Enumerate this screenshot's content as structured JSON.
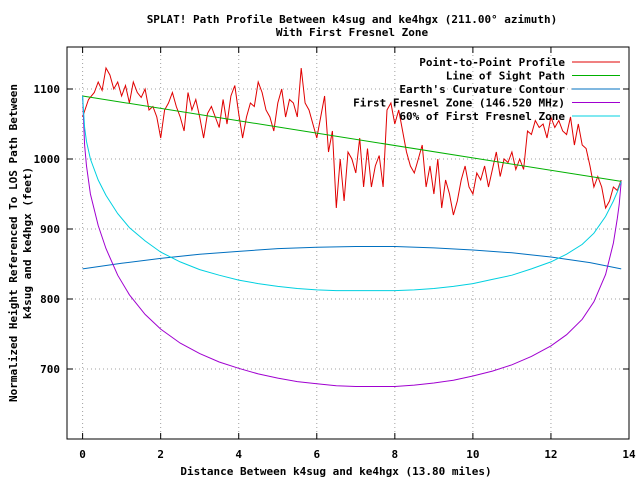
{
  "chart_data": {
    "type": "line",
    "title": "SPLAT! Path Profile Between k4sug and ke4hgx (211.00° azimuth)",
    "subtitle": "With First Fresnel Zone",
    "xlabel": "Distance Between k4sug and ke4hgx (13.80 miles)",
    "ylabel_line1": "Normalized Height Referenced To LOS Path Between",
    "ylabel_line2": "k4sug and ke4hgx (feet)",
    "xlim": [
      -0.4,
      14
    ],
    "ylim": [
      600,
      1160
    ],
    "x_ticks": [
      0,
      2,
      4,
      6,
      8,
      10,
      12,
      14
    ],
    "x_tick_labels": [
      "0",
      "2",
      "4",
      "6",
      "8",
      "10",
      "12",
      "14"
    ],
    "y_ticks": [
      700,
      800,
      900,
      1000,
      1100
    ],
    "y_tick_labels": [
      "700",
      "800",
      "900",
      "1000",
      "1100"
    ],
    "grid": true,
    "legend_position": "top-right",
    "colors": {
      "profile": "#e00000",
      "los": "#00b000",
      "earth": "#0070c0",
      "fresnel": "#a000d0",
      "fresnel60": "#00d0e0"
    },
    "series": [
      {
        "name": "Point-to-Point Profile",
        "key": "profile",
        "x": [
          0.0,
          0.15,
          0.3,
          0.4,
          0.5,
          0.6,
          0.7,
          0.8,
          0.9,
          1.0,
          1.1,
          1.2,
          1.3,
          1.4,
          1.5,
          1.6,
          1.7,
          1.8,
          1.9,
          2.0,
          2.1,
          2.2,
          2.3,
          2.4,
          2.5,
          2.6,
          2.7,
          2.8,
          2.9,
          3.0,
          3.1,
          3.2,
          3.3,
          3.4,
          3.5,
          3.6,
          3.7,
          3.8,
          3.9,
          4.0,
          4.1,
          4.2,
          4.3,
          4.4,
          4.5,
          4.6,
          4.7,
          4.8,
          4.9,
          5.0,
          5.1,
          5.2,
          5.3,
          5.4,
          5.5,
          5.6,
          5.7,
          5.8,
          5.9,
          6.0,
          6.1,
          6.2,
          6.3,
          6.4,
          6.5,
          6.6,
          6.7,
          6.8,
          6.9,
          7.0,
          7.1,
          7.2,
          7.3,
          7.4,
          7.5,
          7.6,
          7.7,
          7.8,
          7.9,
          8.0,
          8.1,
          8.2,
          8.3,
          8.4,
          8.5,
          8.6,
          8.7,
          8.8,
          8.9,
          9.0,
          9.1,
          9.2,
          9.3,
          9.4,
          9.5,
          9.6,
          9.7,
          9.8,
          9.9,
          10.0,
          10.1,
          10.2,
          10.3,
          10.4,
          10.5,
          10.6,
          10.7,
          10.8,
          10.9,
          11.0,
          11.1,
          11.2,
          11.3,
          11.4,
          11.5,
          11.6,
          11.7,
          11.8,
          11.9,
          12.0,
          12.1,
          12.2,
          12.3,
          12.4,
          12.5,
          12.6,
          12.7,
          12.8,
          12.9,
          13.0,
          13.1,
          13.2,
          13.3,
          13.4,
          13.5,
          13.6,
          13.7,
          13.8
        ],
        "y": [
          1060,
          1085,
          1095,
          1110,
          1098,
          1130,
          1120,
          1100,
          1110,
          1090,
          1105,
          1080,
          1110,
          1095,
          1088,
          1100,
          1070,
          1075,
          1060,
          1030,
          1070,
          1080,
          1095,
          1075,
          1060,
          1040,
          1095,
          1070,
          1085,
          1060,
          1030,
          1065,
          1075,
          1060,
          1045,
          1085,
          1050,
          1090,
          1105,
          1065,
          1030,
          1060,
          1080,
          1075,
          1110,
          1095,
          1070,
          1060,
          1040,
          1080,
          1100,
          1060,
          1085,
          1080,
          1060,
          1130,
          1080,
          1070,
          1050,
          1030,
          1060,
          1090,
          1010,
          1040,
          930,
          1000,
          940,
          1010,
          1000,
          980,
          1030,
          960,
          1015,
          960,
          990,
          1005,
          960,
          1070,
          1080,
          1050,
          1070,
          1040,
          1010,
          990,
          980,
          1000,
          1020,
          960,
          990,
          950,
          1000,
          930,
          970,
          950,
          920,
          940,
          970,
          990,
          960,
          950,
          980,
          970,
          990,
          960,
          985,
          1010,
          975,
          1000,
          995,
          1010,
          985,
          1000,
          985,
          1040,
          1035,
          1055,
          1045,
          1050,
          1030,
          1060,
          1045,
          1055,
          1040,
          1035,
          1060,
          1020,
          1050,
          1020,
          1015,
          990,
          960,
          975,
          960,
          930,
          940,
          960,
          955,
          970
        ]
      },
      {
        "name": "Line of Sight Path",
        "key": "los",
        "x": [
          0,
          13.8
        ],
        "y": [
          1090,
          968
        ]
      },
      {
        "name": "Earth's Curvature Contour",
        "key": "earth",
        "x": [
          0,
          1.0,
          2.0,
          3.0,
          4.0,
          5.0,
          6.0,
          7.0,
          8.0,
          9.0,
          10.0,
          11.0,
          12.0,
          13.0,
          13.8
        ],
        "y": [
          843,
          851,
          858,
          864,
          868,
          872,
          874,
          875,
          875,
          873,
          870,
          866,
          860,
          852,
          843
        ]
      },
      {
        "name": "First Fresnel Zone (146.520 MHz)",
        "key": "fresnel",
        "x": [
          0,
          0.05,
          0.1,
          0.2,
          0.4,
          0.6,
          0.9,
          1.2,
          1.6,
          2.0,
          2.5,
          3.0,
          3.5,
          4.0,
          4.5,
          5.0,
          5.5,
          6.0,
          6.5,
          7.0,
          7.5,
          8.0,
          8.5,
          9.0,
          9.5,
          10.0,
          10.5,
          11.0,
          11.5,
          12.0,
          12.4,
          12.8,
          13.1,
          13.4,
          13.6,
          13.7,
          13.75,
          13.8
        ],
        "y": [
          1090,
          1020,
          990,
          950,
          905,
          872,
          834,
          806,
          778,
          757,
          737,
          722,
          710,
          701,
          693,
          687,
          682,
          679,
          676,
          675,
          675,
          675,
          677,
          680,
          684,
          690,
          697,
          706,
          718,
          733,
          749,
          771,
          796,
          835,
          880,
          915,
          935,
          968
        ]
      },
      {
        "name": "60% of First Fresnel Zone",
        "key": "fresnel60",
        "x": [
          0,
          0.05,
          0.1,
          0.2,
          0.4,
          0.6,
          0.9,
          1.2,
          1.6,
          2.0,
          2.5,
          3.0,
          3.5,
          4.0,
          4.5,
          5.0,
          5.5,
          6.0,
          6.5,
          7.0,
          7.5,
          8.0,
          8.5,
          9.0,
          9.5,
          10.0,
          10.5,
          11.0,
          11.5,
          12.0,
          12.4,
          12.8,
          13.1,
          13.4,
          13.6,
          13.7,
          13.75,
          13.8
        ],
        "y": [
          1090,
          1045,
          1025,
          1000,
          970,
          948,
          922,
          902,
          883,
          867,
          853,
          842,
          834,
          827,
          822,
          818,
          815,
          813,
          812,
          812,
          812,
          812,
          813,
          815,
          818,
          822,
          828,
          834,
          843,
          853,
          864,
          878,
          894,
          918,
          940,
          953,
          960,
          968
        ]
      }
    ]
  }
}
